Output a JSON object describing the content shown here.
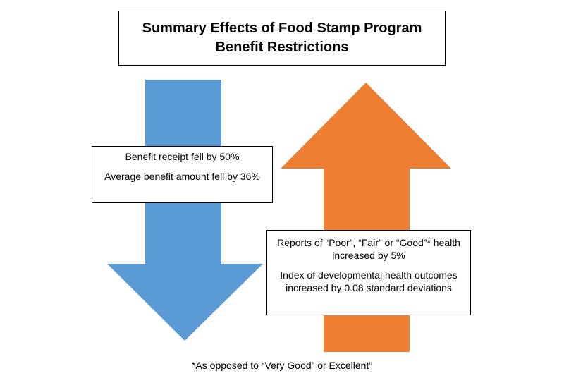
{
  "title": {
    "line1": "Summary Effects of Food Stamp Program",
    "line2": "Benefit Restrictions"
  },
  "down_arrow": {
    "color": "#5B9BD5",
    "statements": [
      "Benefit receipt fell by 50%",
      "Average benefit amount fell by 36%"
    ]
  },
  "up_arrow": {
    "color": "#ED7D31",
    "statements": [
      "Reports of “Poor”, “Fair” or “Good”* health increased by 5%",
      "Index of developmental health outcomes increased by 0.08 standard deviations"
    ]
  },
  "footnote": "*As opposed to “Very Good” or Excellent”"
}
